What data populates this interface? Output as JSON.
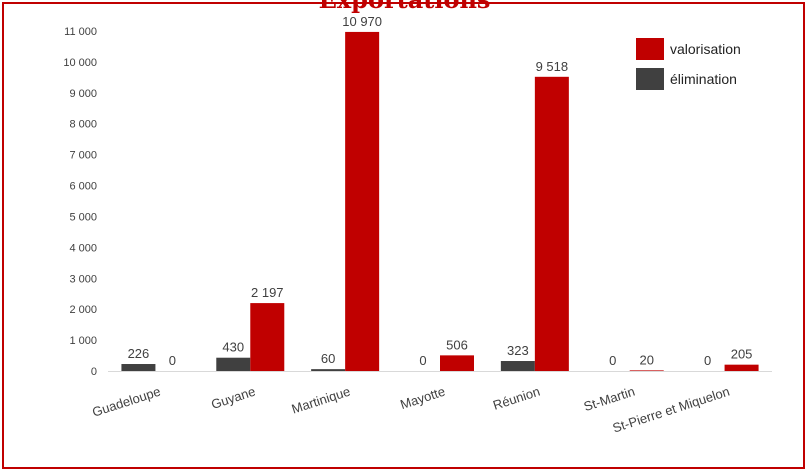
{
  "chart_data": {
    "type": "bar",
    "title": "Exportations",
    "categories": [
      "Guadeloupe",
      "Guyane",
      "Martinique",
      "Mayotte",
      "Réunion",
      "St-Martin",
      "St-Pierre et Miquelon"
    ],
    "series": [
      {
        "name": "élimination",
        "values": [
          226,
          430,
          60,
          0,
          323,
          0,
          0
        ],
        "color": "#404040"
      },
      {
        "name": "valorisation",
        "values": [
          0,
          2197,
          10970,
          506,
          9518,
          20,
          205
        ],
        "color": "#c00000"
      }
    ],
    "value_labels": [
      [
        "226",
        "430",
        "60",
        "0",
        "323",
        "0",
        "0"
      ],
      [
        "0",
        "2 197",
        "10 970",
        "506",
        "9 518",
        "20",
        "205"
      ]
    ],
    "yticks": [
      "0",
      "1 000",
      "2 000",
      "3 000",
      "4 000",
      "5 000",
      "6 000",
      "7 000",
      "8 000",
      "9 000",
      "10 000",
      "11 000"
    ],
    "ylim": [
      0,
      11000
    ],
    "grid": false,
    "legend": {
      "placement": "top-right",
      "entries": [
        {
          "name": "valorisation",
          "color": "#c00000"
        },
        {
          "name": "élimination",
          "color": "#404040"
        }
      ]
    }
  }
}
